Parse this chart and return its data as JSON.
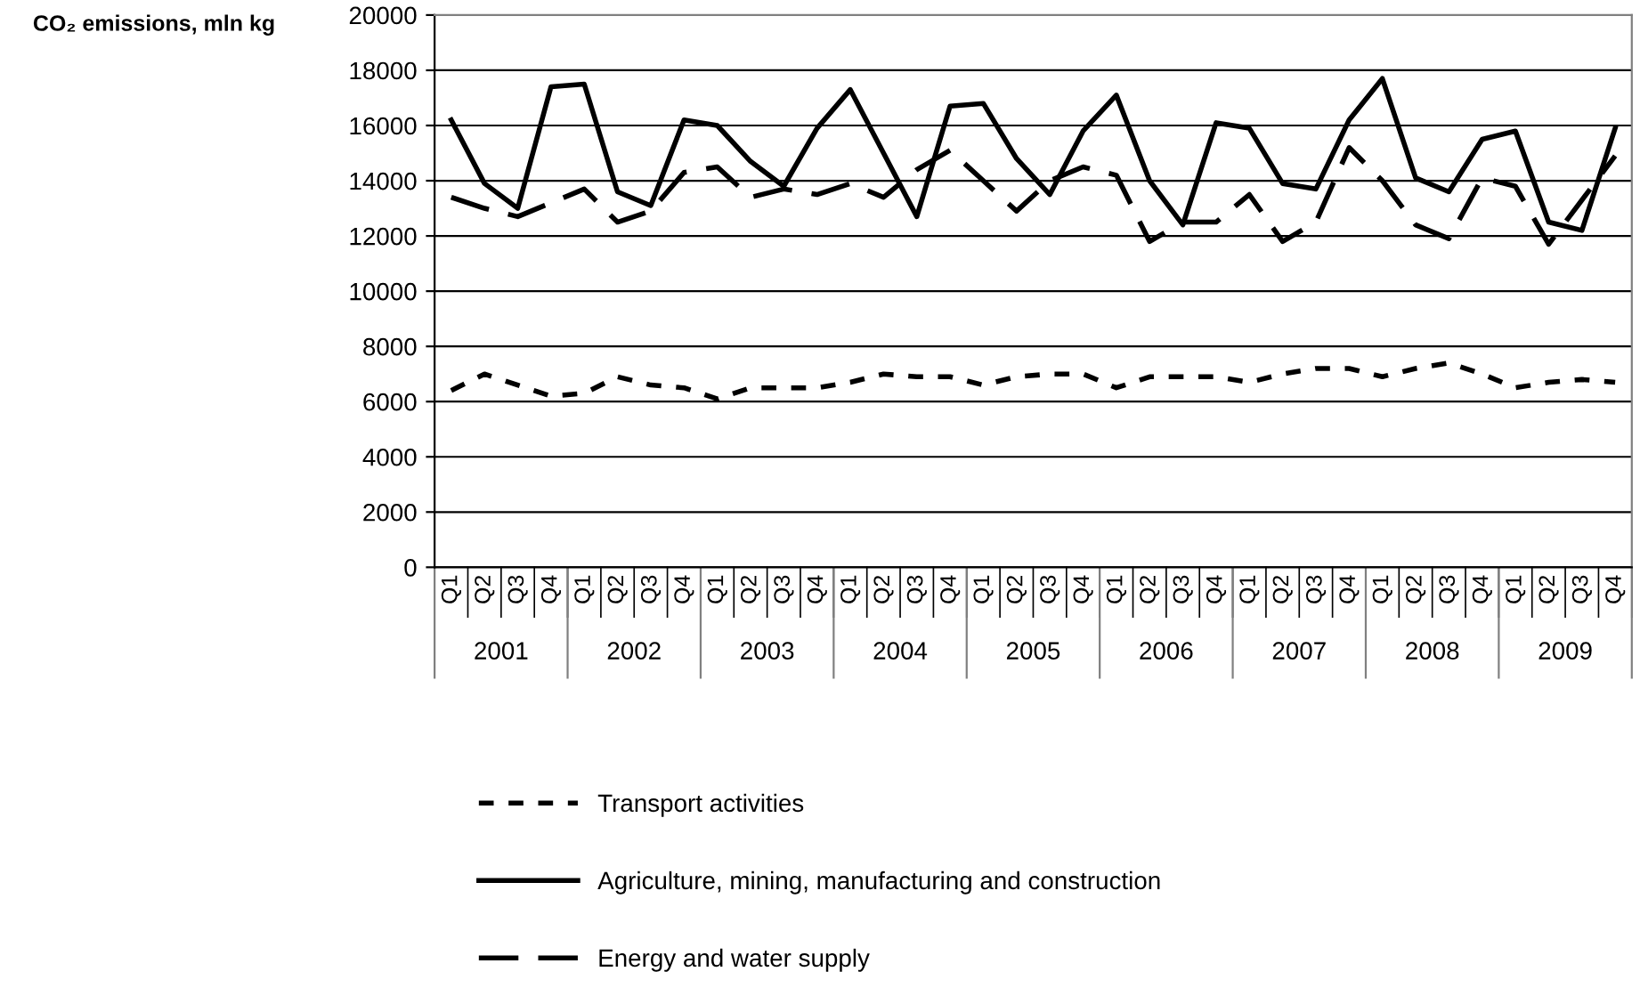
{
  "chart_data": {
    "type": "line",
    "ylabel": "CO₂ emissions, mln kg",
    "categories": [
      "Q1",
      "Q2",
      "Q3",
      "Q4",
      "Q1",
      "Q2",
      "Q3",
      "Q4",
      "Q1",
      "Q2",
      "Q3",
      "Q4",
      "Q1",
      "Q2",
      "Q3",
      "Q4",
      "Q1",
      "Q2",
      "Q3",
      "Q4",
      "Q1",
      "Q2",
      "Q3",
      "Q4",
      "Q1",
      "Q2",
      "Q3",
      "Q4",
      "Q1",
      "Q2",
      "Q3",
      "Q4",
      "Q1",
      "Q2",
      "Q3",
      "Q4"
    ],
    "annotations": [
      "2001",
      "2002",
      "2003",
      "2004",
      "2005",
      "2006",
      "2007",
      "2008",
      "2009"
    ],
    "series": [
      {
        "name": "Transport activities",
        "color": "#000000",
        "line_style": "dotted",
        "values": [
          6400,
          7000,
          6600,
          6200,
          6300,
          6900,
          6600,
          6500,
          6100,
          6500,
          6500,
          6500,
          6700,
          7000,
          6900,
          6900,
          6600,
          6900,
          7000,
          7000,
          6500,
          6900,
          6900,
          6900,
          6700,
          7000,
          7200,
          7200,
          6900,
          7200,
          7400,
          7000,
          6500,
          6700,
          6800,
          6700
        ]
      },
      {
        "name": "Agriculture, mining, manufacturing and construction",
        "color": "#000000",
        "line_style": "solid",
        "values": [
          16200,
          13900,
          13000,
          17400,
          17500,
          13600,
          13100,
          16200,
          16000,
          14700,
          13800,
          15900,
          17300,
          15000,
          12700,
          16700,
          16800,
          14800,
          13500,
          15800,
          17100,
          14000,
          12400,
          16100,
          15900,
          13900,
          13700,
          16200,
          17700,
          14100,
          13600,
          15500,
          15800,
          12500,
          12200,
          15900
        ]
      },
      {
        "name": "Energy and water supply",
        "color": "#000000",
        "line_style": "dashed",
        "values": [
          13400,
          13000,
          12700,
          13200,
          13700,
          12500,
          12900,
          14300,
          14500,
          13400,
          13700,
          13500,
          13900,
          13400,
          14400,
          15100,
          14000,
          12900,
          14000,
          14500,
          14200,
          11800,
          12500,
          12500,
          13500,
          11800,
          12500,
          15200,
          14000,
          12400,
          11900,
          14100,
          13800,
          11700,
          13300,
          14900
        ]
      }
    ],
    "ylim": [
      0,
      20000
    ],
    "yticks": [
      0,
      2000,
      4000,
      6000,
      8000,
      10000,
      12000,
      14000,
      16000,
      18000,
      20000
    ],
    "grid": "y",
    "legend": "bottom",
    "marker": "none"
  }
}
